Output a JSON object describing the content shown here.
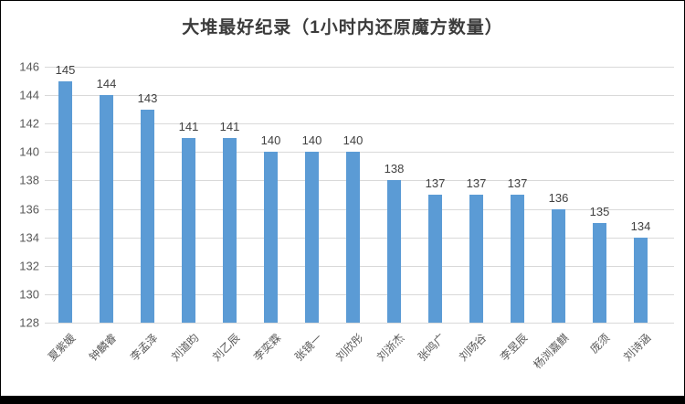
{
  "chart_data": {
    "type": "bar",
    "title": "大堆最好纪录（1小时内还原魔方数量）",
    "categories": [
      "夏紫媛",
      "钟麟睿",
      "李孟泽",
      "刘道昀",
      "刘乙辰",
      "李奕霖",
      "张镜一",
      "刘欣彤",
      "刘浙杰",
      "张鸣广",
      "刘旸谷",
      "李昱辰",
      "杨浏嘉麒",
      "庞须",
      "刘诗涵"
    ],
    "values": [
      145,
      144,
      143,
      141,
      141,
      140,
      140,
      140,
      138,
      137,
      137,
      137,
      136,
      135,
      134
    ],
    "xlabel": "",
    "ylabel": "",
    "ylim": [
      128,
      146
    ],
    "ytick_step": 2,
    "grid": true,
    "legend": "none",
    "data_labels": true,
    "colors": {
      "bar": "#5b9bd5",
      "title": "#3b3b3b",
      "data_label": "#404040",
      "axis_label": "#595959",
      "gridline": "#d9d9d9",
      "frame_border": "#000000",
      "background": "#ffffff"
    }
  }
}
